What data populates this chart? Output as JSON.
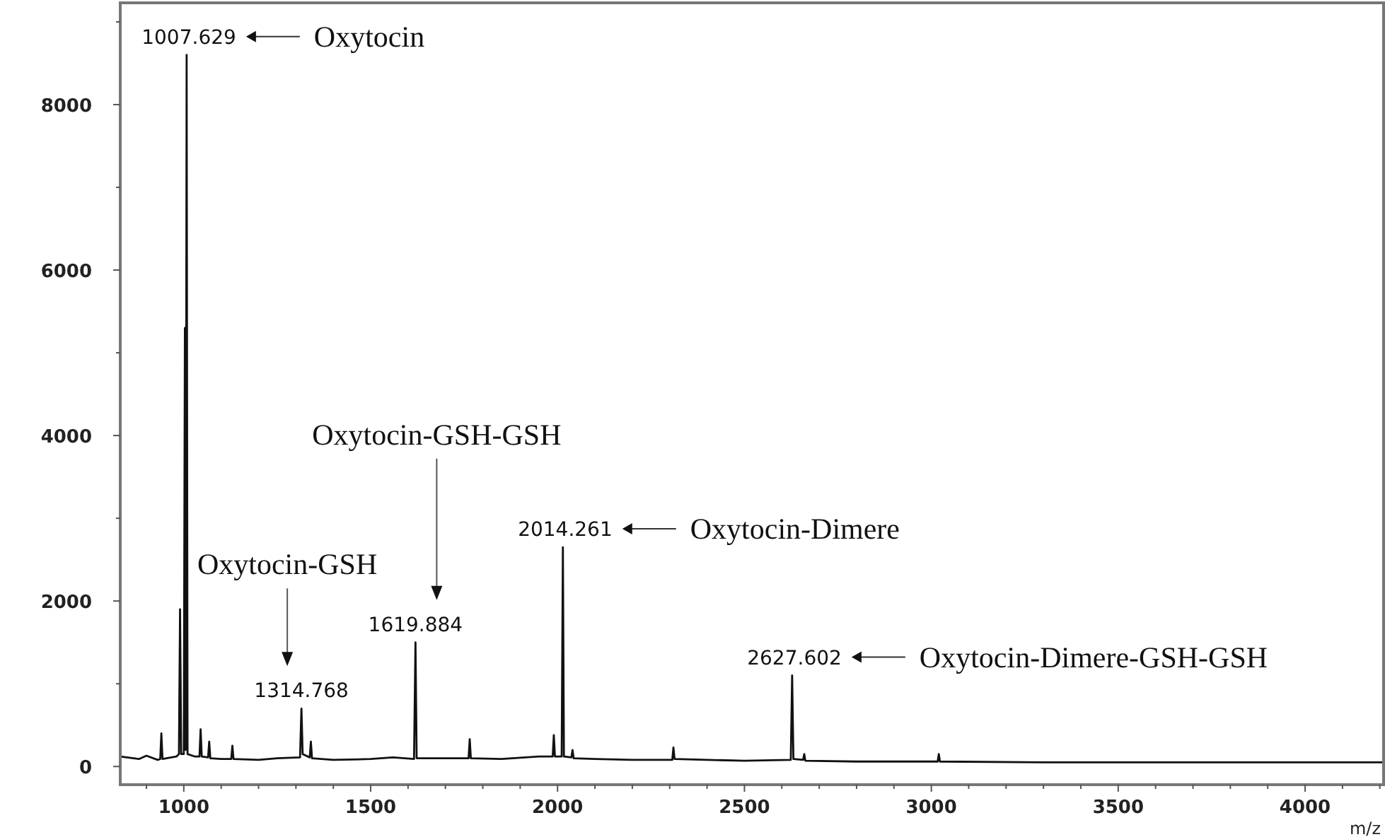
{
  "chart_data": {
    "type": "line",
    "xlabel": "m/z",
    "xlim": [
      830,
      4210
    ],
    "ylim": [
      -220,
      9230
    ],
    "xticks": [
      {
        "value": 900,
        "label": null
      },
      1000,
      {
        "value": 1100,
        "label": null
      },
      {
        "value": 1200,
        "label": null
      },
      {
        "value": 1300,
        "label": null
      },
      {
        "value": 1400,
        "label": null
      },
      1500,
      {
        "value": 1600,
        "label": null
      },
      {
        "value": 1700,
        "label": null
      },
      {
        "value": 1800,
        "label": null
      },
      {
        "value": 1900,
        "label": null
      },
      2000,
      {
        "value": 2100,
        "label": null
      },
      {
        "value": 2200,
        "label": null
      },
      {
        "value": 2300,
        "label": null
      },
      {
        "value": 2400,
        "label": null
      },
      2500,
      {
        "value": 2600,
        "label": null
      },
      {
        "value": 2700,
        "label": null
      },
      {
        "value": 2800,
        "label": null
      },
      {
        "value": 2900,
        "label": null
      },
      3000,
      {
        "value": 3100,
        "label": null
      },
      {
        "value": 3200,
        "label": null
      },
      {
        "value": 3300,
        "label": null
      },
      {
        "value": 3400,
        "label": null
      },
      3500,
      {
        "value": 3600,
        "label": null
      },
      {
        "value": 3700,
        "label": null
      },
      {
        "value": 3800,
        "label": null
      },
      {
        "value": 3900,
        "label": null
      },
      4000,
      {
        "value": 4100,
        "label": null
      },
      {
        "value": 4200,
        "label": null
      }
    ],
    "yticks": [
      0,
      {
        "value": 1000,
        "label": null
      },
      2000,
      {
        "value": 3000,
        "label": null
      },
      4000,
      {
        "value": 5000,
        "label": null
      },
      6000,
      {
        "value": 7000,
        "label": null
      },
      8000,
      {
        "value": 9000,
        "label": null
      }
    ],
    "grid": false,
    "marker": "none",
    "line_style": "solid",
    "series": [
      {
        "color": "#111111",
        "x": [
          830,
          880,
          900,
          930,
          937,
          940,
          943,
          980,
          987,
          990,
          993,
          1000,
          1003,
          1005,
          1007.629,
          1010,
          1030,
          1042,
          1045,
          1048,
          1065,
          1068,
          1071,
          1100,
          1127,
          1130,
          1133,
          1200,
          1250,
          1311,
          1314.768,
          1318,
          1337,
          1340,
          1343,
          1400,
          1500,
          1560,
          1616,
          1619.884,
          1623,
          1700,
          1762,
          1765,
          1768,
          1850,
          1950,
          1987,
          1990,
          1993,
          2011,
          2014.261,
          2017,
          2037,
          2040,
          2043,
          2100,
          2200,
          2307,
          2310,
          2313,
          2400,
          2500,
          2624,
          2627.602,
          2631,
          2657,
          2660,
          2663,
          2800,
          3000,
          3017,
          3020,
          3023,
          3300,
          3600,
          4000,
          4210
        ],
        "values": [
          120,
          90,
          130,
          80,
          90,
          400,
          90,
          120,
          150,
          1900,
          150,
          150,
          5300,
          200,
          8600,
          150,
          120,
          120,
          450,
          120,
          110,
          300,
          100,
          90,
          90,
          250,
          90,
          80,
          100,
          110,
          700,
          150,
          110,
          300,
          100,
          80,
          90,
          110,
          90,
          1500,
          100,
          100,
          100,
          330,
          100,
          90,
          120,
          120,
          380,
          120,
          120,
          2650,
          120,
          110,
          200,
          100,
          90,
          80,
          80,
          230,
          90,
          80,
          70,
          80,
          1100,
          90,
          80,
          150,
          70,
          60,
          60,
          60,
          150,
          60,
          50,
          50,
          50,
          50
        ]
      }
    ],
    "annotations": [
      {
        "text": "1007.629",
        "x": 1007.629,
        "y": 8600
      },
      "Oxytocin",
      {
        "text": "1314.768",
        "x": 1314.768,
        "y": 700
      },
      "Oxytocin-GSH",
      {
        "text": "1619.884",
        "x": 1619.884,
        "y": 1500
      },
      "Oxytocin-GSH-GSH",
      {
        "text": "2014.261",
        "x": 2014.261,
        "y": 2650
      },
      "Oxytocin-Dimere",
      {
        "text": "2627.602",
        "x": 2627.602,
        "y": 1100
      },
      "Oxytocin-Dimere-GSH-GSH"
    ]
  }
}
